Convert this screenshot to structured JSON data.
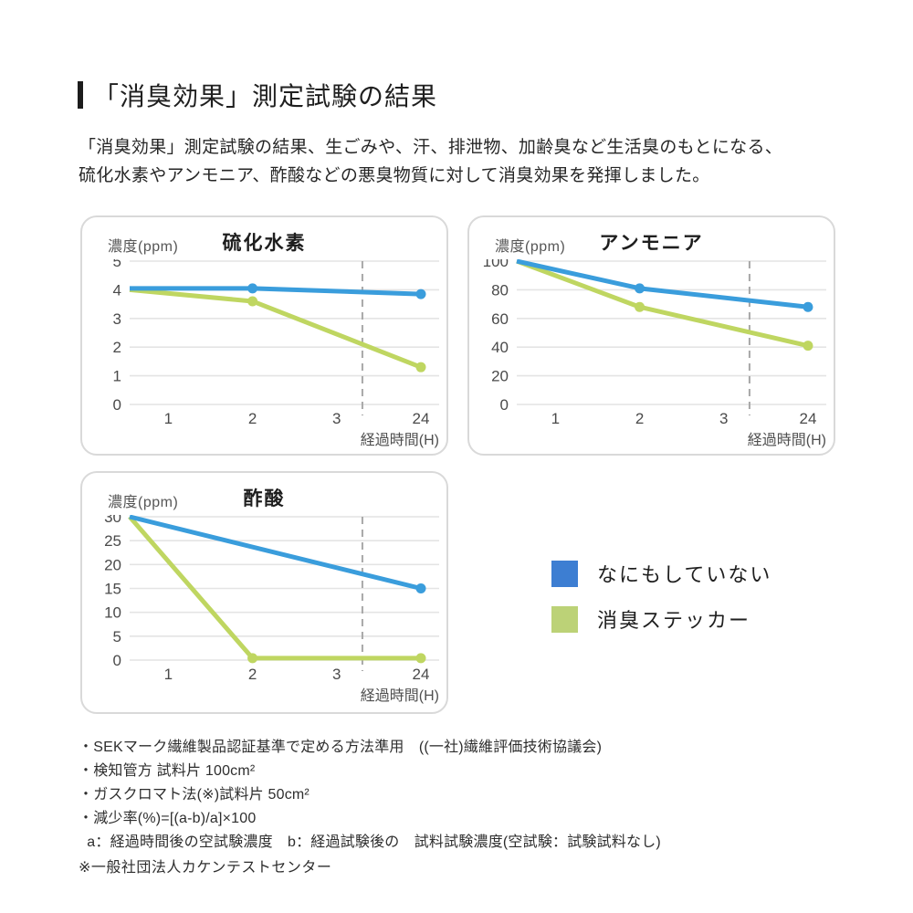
{
  "page": {
    "title": "「消臭効果」測定試験の結果",
    "intro_line1": "「消臭効果」測定試験の結果、生ごみや、汗、排泄物、加齢臭など生活臭のもとになる、",
    "intro_line2": "硫化水素やアンモニア、酢酸などの悪臭物質に対して消臭効果を発揮しました。"
  },
  "colors": {
    "line_blue": "#3A9DDC",
    "line_green": "#BFD661",
    "legend_blue": "#3D7ED2",
    "legend_green": "#BCD277",
    "grid": "#E4E4E4",
    "dashed_guide": "#A8A8A8",
    "panel_border": "#D9D9D9",
    "tick_text": "#4A4A4A",
    "axis_text": "#4F4F4F"
  },
  "legend": {
    "items": [
      {
        "label": "なにもしていない",
        "color_key": "legend_blue"
      },
      {
        "label": "消臭ステッカー",
        "color_key": "legend_green"
      }
    ]
  },
  "chart_data": [
    {
      "type": "line",
      "title": "硫化水素",
      "ylabel": "濃度(ppm)",
      "xlabel": "経過時間(H)",
      "x_ticks": [
        "1",
        "2",
        "3",
        "24"
      ],
      "y_ticks": [
        0,
        1,
        2,
        3,
        4,
        5
      ],
      "ylim": [
        0,
        5
      ],
      "grid": true,
      "dashed_guide_between": [
        "3",
        "24"
      ],
      "series": [
        {
          "name": "なにもしていない",
          "color": "blue",
          "points": [
            {
              "x": "start",
              "y": 4.05
            },
            {
              "x": "2",
              "y": 4.05,
              "dot": true
            },
            {
              "x": "24",
              "y": 3.85,
              "dot": true
            }
          ]
        },
        {
          "name": "消臭ステッカー",
          "color": "green",
          "points": [
            {
              "x": "start",
              "y": 4.0
            },
            {
              "x": "2",
              "y": 3.6,
              "dot": true
            },
            {
              "x": "24",
              "y": 1.3,
              "dot": true
            }
          ]
        }
      ]
    },
    {
      "type": "line",
      "title": "アンモニア",
      "ylabel": "濃度(ppm)",
      "xlabel": "経過時間(H)",
      "x_ticks": [
        "1",
        "2",
        "3",
        "24"
      ],
      "y_ticks": [
        0,
        20,
        40,
        60,
        80,
        100
      ],
      "ylim": [
        0,
        100
      ],
      "grid": true,
      "dashed_guide_between": [
        "3",
        "24"
      ],
      "series": [
        {
          "name": "なにもしていない",
          "color": "blue",
          "points": [
            {
              "x": "start",
              "y": 100
            },
            {
              "x": "2",
              "y": 81,
              "dot": true
            },
            {
              "x": "24",
              "y": 68,
              "dot": true
            }
          ]
        },
        {
          "name": "消臭ステッカー",
          "color": "green",
          "points": [
            {
              "x": "start",
              "y": 100
            },
            {
              "x": "2",
              "y": 68,
              "dot": true
            },
            {
              "x": "24",
              "y": 41,
              "dot": true
            }
          ]
        }
      ]
    },
    {
      "type": "line",
      "title": "酢酸",
      "ylabel": "濃度(ppm)",
      "xlabel": "経過時間(H)",
      "x_ticks": [
        "1",
        "2",
        "3",
        "24"
      ],
      "y_ticks": [
        0,
        5,
        10,
        15,
        20,
        25,
        30
      ],
      "ylim": [
        0,
        30
      ],
      "grid": true,
      "dashed_guide_between": [
        "3",
        "24"
      ],
      "series": [
        {
          "name": "なにもしていない",
          "color": "blue",
          "points": [
            {
              "x": "start",
              "y": 30
            },
            {
              "x": "24",
              "y": 15,
              "dot": true
            }
          ]
        },
        {
          "name": "消臭ステッカー",
          "color": "green",
          "points": [
            {
              "x": "start",
              "y": 30
            },
            {
              "x": "2",
              "y": 0.4,
              "dot": true
            },
            {
              "x": "24",
              "y": 0.4,
              "dot": true
            }
          ]
        }
      ]
    }
  ],
  "footnotes": [
    "・SEKマーク繊維製品認証基準で定める方法準用　((一社)繊維評価技術協議会)",
    "・検知管方 試料片 100cm²",
    "・ガスクロマト法(※)試料片 50cm²",
    "・減少率(%)=[(a-b)/a]×100",
    "  a：経過時間後の空試験濃度　b：経過試験後の　試料試験濃度(空試験：試験試料なし)"
  ],
  "footnote_source": "※一般社団法人カケンテストセンター"
}
